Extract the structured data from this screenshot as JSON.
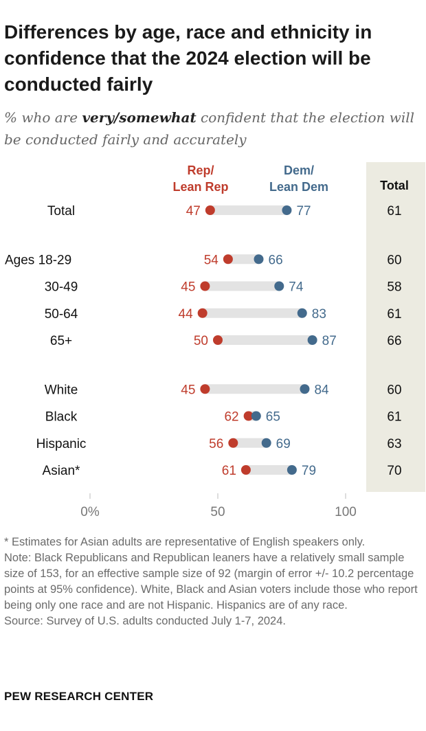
{
  "title": "Differences by age, race and ethnicity in confidence that the 2024 election will be conducted fairly",
  "subtitle": {
    "prefix": "% who are ",
    "emphasis": "very/somewhat",
    "suffix": " confident that the election will be conducted fairly and accurately"
  },
  "chart_data": {
    "type": "dot",
    "title": "Differences by age, race and ethnicity in confidence that the 2024 election will be conducted fairly",
    "xlim": [
      0,
      100
    ],
    "x_ticks": [
      0,
      50,
      100
    ],
    "x_tick_labels": [
      "0%",
      "50",
      "100"
    ],
    "series_labels": {
      "rep": [
        "Rep/",
        "Lean Rep"
      ],
      "dem": [
        "Dem/",
        "Lean Dem"
      ],
      "total": "Total"
    },
    "colors": {
      "rep": "#bf3c2c",
      "dem": "#436a8c",
      "bar": "#e3e3e3",
      "total_bg": "#ecebe1",
      "axis": "#bbbbbb"
    },
    "rows": [
      {
        "label": "Total",
        "rep": 47,
        "dem": 77,
        "total": 61,
        "group": 0
      },
      {
        "label": "Ages 18-29",
        "rep": 54,
        "dem": 66,
        "total": 60,
        "group": 1
      },
      {
        "label": "30-49",
        "rep": 45,
        "dem": 74,
        "total": 58,
        "group": 1
      },
      {
        "label": "50-64",
        "rep": 44,
        "dem": 83,
        "total": 61,
        "group": 1
      },
      {
        "label": "65+",
        "rep": 50,
        "dem": 87,
        "total": 66,
        "group": 1
      },
      {
        "label": "White",
        "rep": 45,
        "dem": 84,
        "total": 60,
        "group": 2
      },
      {
        "label": "Black",
        "rep": 62,
        "dem": 65,
        "total": 61,
        "group": 2
      },
      {
        "label": "Hispanic",
        "rep": 56,
        "dem": 69,
        "total": 63,
        "group": 2
      },
      {
        "label": "Asian*",
        "rep": 61,
        "dem": 79,
        "total": 70,
        "group": 2
      }
    ]
  },
  "notes": {
    "asterisk": "* Estimates for Asian adults are representative of English speakers only.",
    "note": "Note: Black Republicans and Republican leaners have a relatively small sample size of 153, for an effective sample size of 92 (margin of error +/- 10.2 percentage points at 95% confidence). White, Black and Asian voters include those who report being only one race and are not Hispanic. Hispanics are of any race.",
    "source": "Source: Survey of U.S. adults conducted July 1-7, 2024."
  },
  "footer": "PEW RESEARCH CENTER"
}
